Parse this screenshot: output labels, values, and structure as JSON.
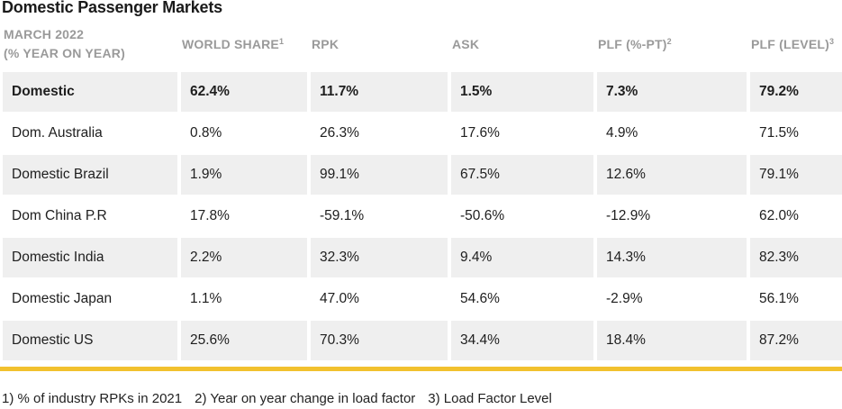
{
  "title": "Domestic Passenger Markets",
  "header": {
    "col0_line1": "MARCH 2022",
    "col0_line2": "(% YEAR ON YEAR)",
    "world_share": "WORLD SHARE",
    "world_share_sup": "1",
    "rpk": "RPK",
    "ask": "ASK",
    "plf_pt": "PLF (%-PT)",
    "plf_pt_sup": "2",
    "plf_level": "PLF (LEVEL)",
    "plf_level_sup": "3"
  },
  "rows": [
    {
      "market": "Domestic",
      "world_share": "62.4%",
      "rpk": "11.7%",
      "ask": "1.5%",
      "plf_pt": "7.3%",
      "plf_level": "79.2%"
    },
    {
      "market": "Dom. Australia",
      "world_share": "0.8%",
      "rpk": "26.3%",
      "ask": "17.6%",
      "plf_pt": "4.9%",
      "plf_level": "71.5%"
    },
    {
      "market": "Domestic Brazil",
      "world_share": "1.9%",
      "rpk": "99.1%",
      "ask": "67.5%",
      "plf_pt": "12.6%",
      "plf_level": "79.1%"
    },
    {
      "market": "Dom China P.R",
      "world_share": "17.8%",
      "rpk": "-59.1%",
      "ask": "-50.6%",
      "plf_pt": "-12.9%",
      "plf_level": "62.0%"
    },
    {
      "market": "Domestic India",
      "world_share": "2.2%",
      "rpk": "32.3%",
      "ask": "9.4%",
      "plf_pt": "14.3%",
      "plf_level": "82.3%"
    },
    {
      "market": "Domestic Japan",
      "world_share": "1.1%",
      "rpk": "47.0%",
      "ask": "54.6%",
      "plf_pt": "-2.9%",
      "plf_level": "56.1%"
    },
    {
      "market": "Domestic US",
      "world_share": "25.6%",
      "rpk": "70.3%",
      "ask": "34.4%",
      "plf_pt": "18.4%",
      "plf_level": "87.2%"
    }
  ],
  "footnotes": {
    "f1": "1) % of industry RPKs in 2021",
    "f2": "2) Year on year change in load factor",
    "f3": "3) Load Factor Level"
  },
  "colors": {
    "accent_bar": "#f2c12e",
    "stripe": "#efefef",
    "header_text": "#9a9a9a"
  }
}
